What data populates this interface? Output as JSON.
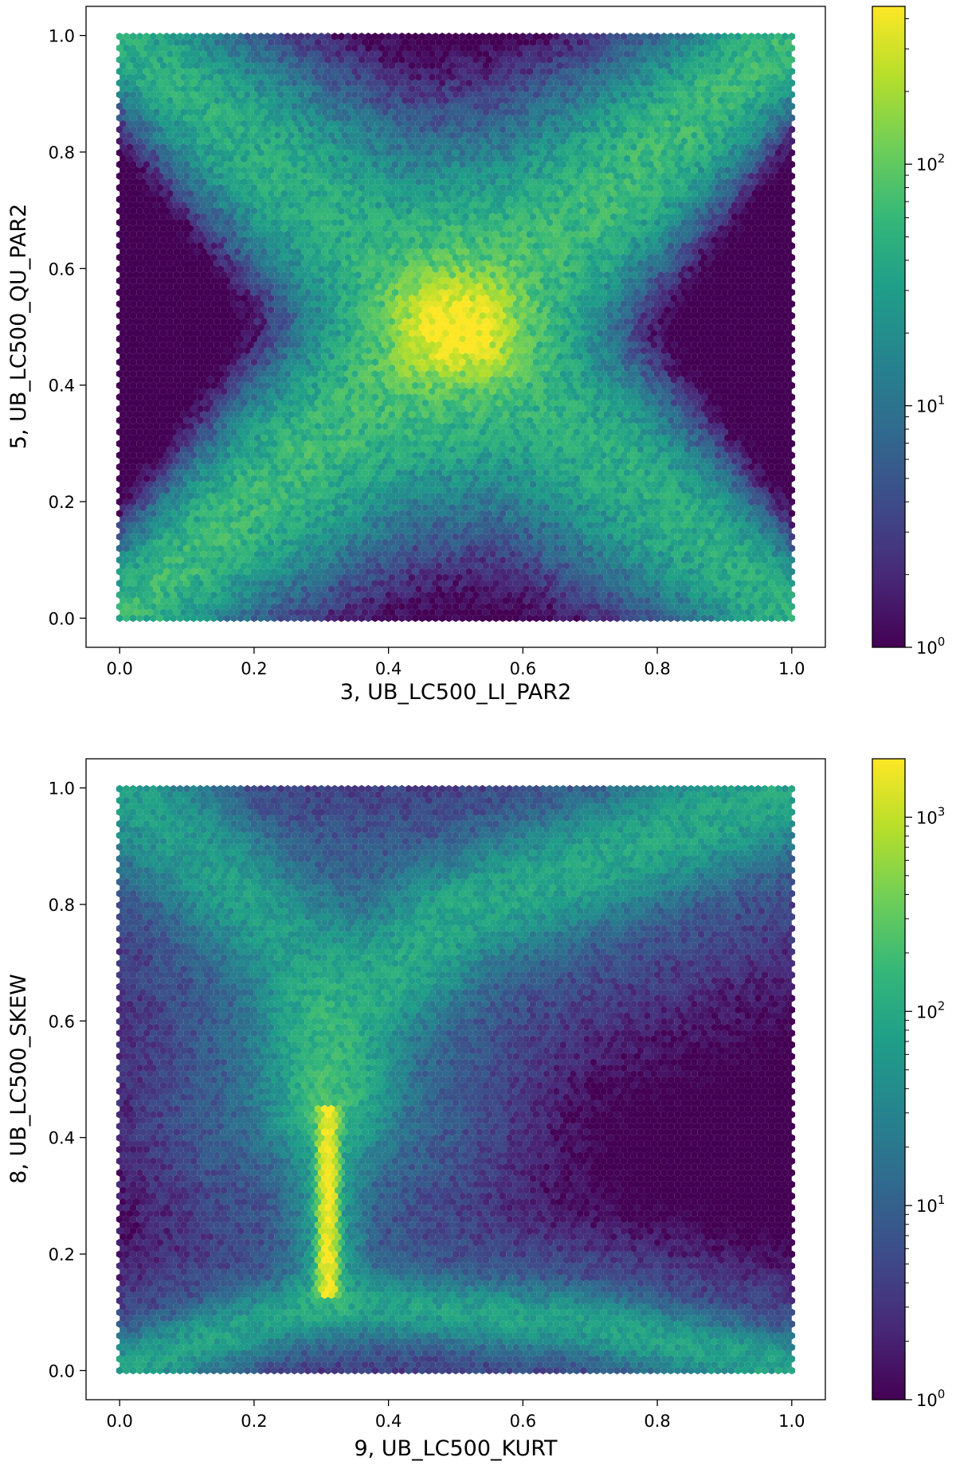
{
  "chart_data": [
    {
      "type": "heatmap",
      "subtype": "hexbin",
      "xlabel": "3, UB_LC500_LI_PAR2",
      "ylabel": "5, UB_LC500_QU_PAR2",
      "xlim": [
        -0.05,
        1.05
      ],
      "ylim": [
        -0.05,
        1.05
      ],
      "xticks": [
        "0.0",
        "0.2",
        "0.4",
        "0.6",
        "0.8",
        "1.0"
      ],
      "yticks": [
        "0.0",
        "0.2",
        "0.4",
        "0.6",
        "0.8",
        "1.0"
      ],
      "colormap": "viridis",
      "color_scale": "log",
      "colorbar_range": [
        1,
        450
      ],
      "colorbar_ticks": [
        {
          "base": "10",
          "exp": "0",
          "value": 1
        },
        {
          "base": "10",
          "exp": "1",
          "value": 10
        },
        {
          "base": "10",
          "exp": "2",
          "value": 100
        }
      ],
      "grid": false,
      "density_features": [
        {
          "shape": "peak",
          "x": 0.5,
          "y": 0.5,
          "count": 450
        },
        {
          "shape": "diagonal band",
          "from": [
            0.0,
            0.0
          ],
          "to": [
            1.0,
            1.0
          ],
          "count": 60
        },
        {
          "shape": "diagonal band",
          "from": [
            0.0,
            1.0
          ],
          "to": [
            1.0,
            0.0
          ],
          "count": 45
        }
      ]
    },
    {
      "type": "heatmap",
      "subtype": "hexbin",
      "xlabel": "9, UB_LC500_KURT",
      "ylabel": "8, UB_LC500_SKEW",
      "xlim": [
        -0.05,
        1.05
      ],
      "ylim": [
        -0.05,
        1.05
      ],
      "xticks": [
        "0.0",
        "0.2",
        "0.4",
        "0.6",
        "0.8",
        "1.0"
      ],
      "yticks": [
        "0.0",
        "0.2",
        "0.4",
        "0.6",
        "0.8",
        "1.0"
      ],
      "colormap": "viridis",
      "color_scale": "log",
      "colorbar_range": [
        1,
        2000
      ],
      "colorbar_ticks": [
        {
          "base": "10",
          "exp": "0",
          "value": 1
        },
        {
          "base": "10",
          "exp": "1",
          "value": 10
        },
        {
          "base": "10",
          "exp": "2",
          "value": 100
        },
        {
          "base": "10",
          "exp": "3",
          "value": 1000
        }
      ],
      "grid": false,
      "density_features": [
        {
          "shape": "vertical ridge",
          "x": 0.31,
          "y_range": [
            0.13,
            0.45
          ],
          "count": 2000
        },
        {
          "shape": "curve",
          "points": [
            [
              0.31,
              0.45
            ],
            [
              0.33,
              0.6
            ],
            [
              0.5,
              0.78
            ],
            [
              1.0,
              1.0
            ]
          ],
          "count": 80
        },
        {
          "shape": "curve",
          "points": [
            [
              0.0,
              1.0
            ],
            [
              0.15,
              0.85
            ],
            [
              0.28,
              0.7
            ],
            [
              0.31,
              0.5
            ]
          ],
          "count": 60
        },
        {
          "shape": "bottom arc",
          "points": [
            [
              0.0,
              0.0
            ],
            [
              0.3,
              0.12
            ],
            [
              0.7,
              0.08
            ],
            [
              1.0,
              0.0
            ]
          ],
          "count": 70
        }
      ]
    }
  ]
}
